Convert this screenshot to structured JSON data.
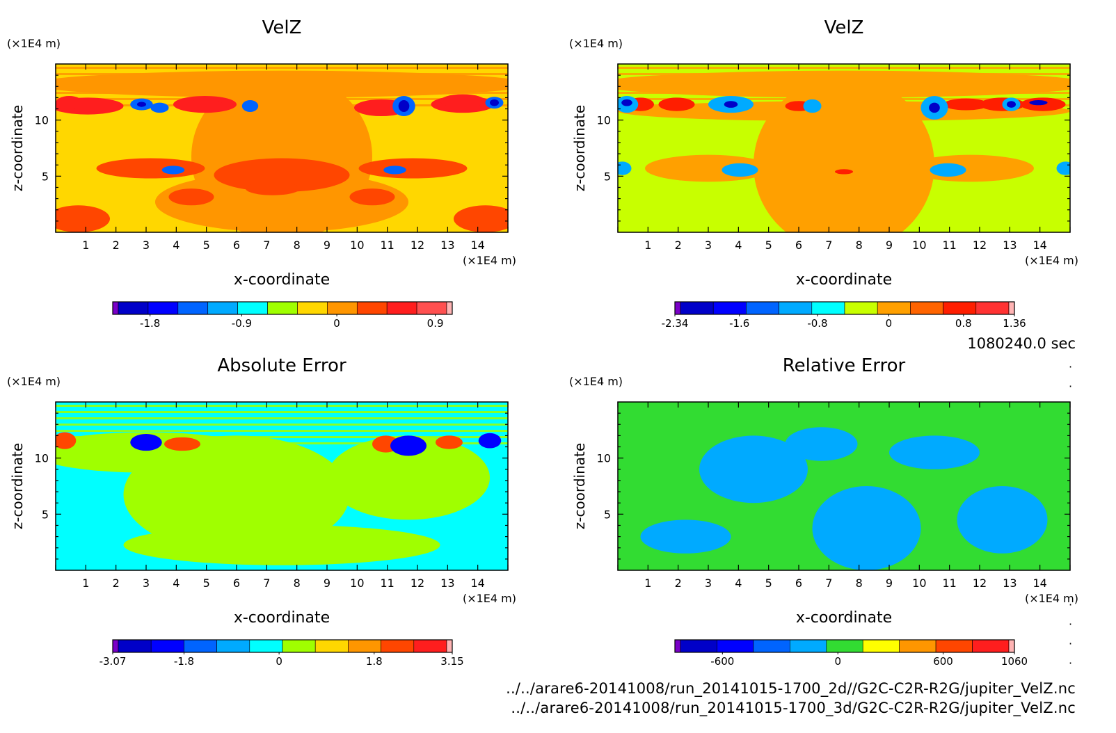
{
  "time_label": "1080240.0 sec",
  "files": [
    "../../arare6-20141008/run_20141015-1700_2d//G2C-C2R-R2G/jupiter_VelZ.nc",
    "../../arare6-20141008/run_20141015-1700_3d/G2C-C2R-R2G/jupiter_VelZ.nc"
  ],
  "chart_data": [
    {
      "type": "heatmap",
      "title": "VelZ",
      "xlabel": "x-coordinate",
      "ylabel": "z-coordinate",
      "x_unit": "(×1E4 m)",
      "y_unit": "(×1E4 m)",
      "xlim": [
        0,
        15
      ],
      "ylim": [
        0,
        15
      ],
      "x_ticks": [
        "1",
        "2",
        "3",
        "4",
        "5",
        "6",
        "7",
        "8",
        "9",
        "10",
        "11",
        "12",
        "13",
        "14"
      ],
      "y_ticks": [
        "5",
        "10"
      ],
      "colorbar": {
        "colors": [
          "#7a00c8",
          "#0000c8",
          "#0000ff",
          "#0064ff",
          "#00aaff",
          "#00ffff",
          "#a0ff00",
          "#ffd700",
          "#ff9600",
          "#ff4600",
          "#ff1e1e",
          "#ff5050",
          "#ffb4b4"
        ],
        "labels": [
          "-1.8",
          "-0.9",
          "0",
          "0.9"
        ]
      },
      "fields": [
        {
          "name": "background",
          "level": 7
        },
        {
          "name": "upper band",
          "level": 8
        },
        {
          "name": "center plume",
          "level": 8
        },
        {
          "name": "center warm",
          "level": 9
        },
        {
          "name": "low lobe",
          "level": 9
        },
        {
          "name": "cells left",
          "level": 10
        },
        {
          "name": "cells right",
          "level": 10
        },
        {
          "name": "cold cells",
          "level": 3
        },
        {
          "name": "deep cold",
          "level": 1
        }
      ]
    },
    {
      "type": "heatmap",
      "title": "VelZ",
      "xlabel": "x-coordinate",
      "ylabel": "z-coordinate",
      "x_unit": "(×1E4 m)",
      "y_unit": "(×1E4 m)",
      "xlim": [
        0,
        15
      ],
      "ylim": [
        0,
        15
      ],
      "x_ticks": [
        "1",
        "2",
        "3",
        "4",
        "5",
        "6",
        "7",
        "8",
        "9",
        "10",
        "11",
        "12",
        "13",
        "14"
      ],
      "y_ticks": [
        "5",
        "10"
      ],
      "colorbar": {
        "colors": [
          "#7a00c8",
          "#0000c8",
          "#0000ff",
          "#0064ff",
          "#00aaff",
          "#00ffff",
          "#c8ff00",
          "#ffa000",
          "#ff6400",
          "#ff1e00",
          "#ff3232",
          "#ffb4b4"
        ],
        "labels": [
          "-2.34",
          "-1.6",
          "-0.8",
          "0",
          "0.8",
          "1.36"
        ]
      },
      "fields": [
        {
          "name": "background",
          "level": 6
        },
        {
          "name": "upper band",
          "level": 7
        },
        {
          "name": "center plume",
          "level": 7
        },
        {
          "name": "cells",
          "level": 9
        },
        {
          "name": "cold cells",
          "level": 4
        },
        {
          "name": "deep cold",
          "level": 1
        }
      ]
    },
    {
      "type": "heatmap",
      "title": "Absolute Error",
      "xlabel": "x-coordinate",
      "ylabel": "z-coordinate",
      "x_unit": "(×1E4 m)",
      "y_unit": "(×1E4 m)",
      "xlim": [
        0,
        15
      ],
      "ylim": [
        0,
        15
      ],
      "x_ticks": [
        "1",
        "2",
        "3",
        "4",
        "5",
        "6",
        "7",
        "8",
        "9",
        "10",
        "11",
        "12",
        "13",
        "14"
      ],
      "y_ticks": [
        "5",
        "10"
      ],
      "colorbar": {
        "colors": [
          "#7a00c8",
          "#0000c8",
          "#0000ff",
          "#0064ff",
          "#00aaff",
          "#00ffff",
          "#a0ff00",
          "#ffd700",
          "#ff9600",
          "#ff4600",
          "#ff1e1e",
          "#ffb4b4"
        ],
        "labels": [
          "-3.07",
          "-1.8",
          "0",
          "1.8",
          "3.15"
        ]
      },
      "fields": [
        {
          "name": "background",
          "level": 5
        },
        {
          "name": "positive regions",
          "level": 6
        },
        {
          "name": "warm cells",
          "level": 9
        },
        {
          "name": "cold cells",
          "level": 2
        }
      ]
    },
    {
      "type": "heatmap",
      "title": "Relative Error",
      "xlabel": "x-coordinate",
      "ylabel": "z-coordinate",
      "x_unit": "(×1E4 m)",
      "y_unit": "(×1E4 m)",
      "xlim": [
        0,
        15
      ],
      "ylim": [
        0,
        15
      ],
      "x_ticks": [
        "1",
        "2",
        "3",
        "4",
        "5",
        "6",
        "7",
        "8",
        "9",
        "10",
        "11",
        "12",
        "13",
        "14"
      ],
      "y_ticks": [
        "5",
        "10"
      ],
      "colorbar": {
        "colors": [
          "#7a00c8",
          "#0000c8",
          "#0000ff",
          "#0064ff",
          "#00aaff",
          "#32dc32",
          "#ffff00",
          "#ff9600",
          "#ff4600",
          "#ff1e1e",
          "#ffb4b4"
        ],
        "labels": [
          "-600",
          "0",
          "600",
          "1060"
        ]
      },
      "fields": [
        {
          "name": "background",
          "level": 5
        },
        {
          "name": "negative regions",
          "level": 4
        }
      ]
    }
  ]
}
